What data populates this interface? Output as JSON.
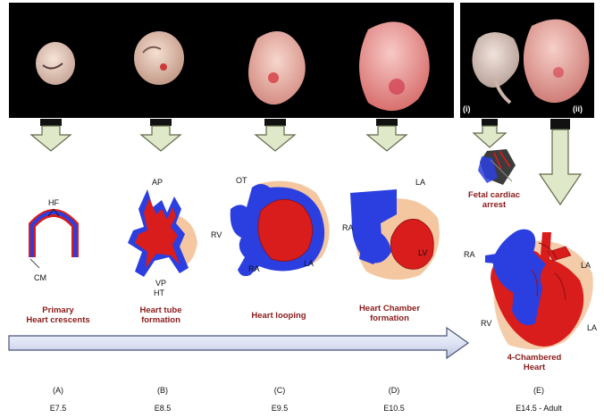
{
  "colors": {
    "red": "#d91c1c",
    "blue": "#2b3fe0",
    "peach": "#f4c7a1",
    "arrow_fill": "#dfe8c8",
    "arrow_stroke": "#606a4a",
    "caption": "#8b1a1a",
    "progress_fill": "#dfe4f4",
    "progress_stroke": "#4a5478"
  },
  "photo_labels": {
    "i": "(i)",
    "ii": "(ii)"
  },
  "stages": [
    {
      "id": "A",
      "letter": "(A)",
      "age": "E7.5",
      "caption": "Primary\nHeart crescents",
      "labels": {
        "hf": "HF",
        "cm": "CM"
      }
    },
    {
      "id": "B",
      "letter": "(B)",
      "age": "E8.5",
      "caption": "Heart tube\nformation",
      "labels": {
        "ap": "AP",
        "vp": "VP",
        "ht": "HT"
      }
    },
    {
      "id": "C",
      "letter": "(C)",
      "age": "E9.5",
      "caption": "Heart looping",
      "labels": {
        "ot": "OT",
        "rv": "RV",
        "ra": "RA",
        "la": "LA"
      }
    },
    {
      "id": "D",
      "letter": "(D)",
      "age": "E10.5",
      "caption": "Heart Chamber\nformation",
      "labels": {
        "la": "LA",
        "ra": "RA",
        "lv": "LV"
      }
    },
    {
      "id": "E",
      "letter": "(E)",
      "age": "E14.5 - Adult",
      "caption": "4-Chambered\nHeart",
      "labels": {
        "ra": "RA",
        "la_top": "LA",
        "rv": "RV",
        "la_bottom": "LA"
      }
    }
  ],
  "fetal_arrest": "Fetal cardiac\narrest"
}
